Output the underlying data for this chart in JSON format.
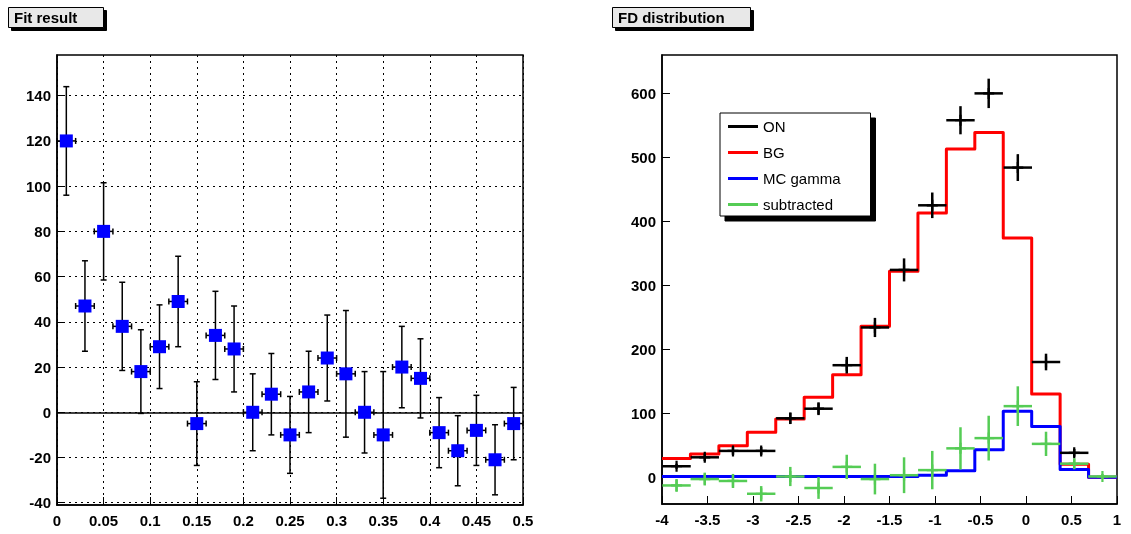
{
  "chart_data": [
    {
      "type": "scatter",
      "title": "Fit result",
      "x": [
        0.01,
        0.03,
        0.05,
        0.07,
        0.09,
        0.11,
        0.13,
        0.15,
        0.17,
        0.19,
        0.21,
        0.23,
        0.25,
        0.27,
        0.29,
        0.31,
        0.33,
        0.35,
        0.37,
        0.39,
        0.41,
        0.43,
        0.45,
        0.47,
        0.49
      ],
      "series": [
        {
          "color": "#0000ff",
          "values": [
            120,
            47,
            80,
            38,
            18,
            29,
            49,
            -5,
            34,
            28,
            0,
            8,
            -10,
            9,
            24,
            17,
            0,
            -10,
            20,
            15,
            -9,
            -17,
            -8,
            -21,
            -5
          ],
          "errors": [
            24,
            20,
            21.5,
            19.5,
            18.5,
            18.5,
            20,
            18.5,
            19.5,
            19,
            17,
            18,
            17,
            18,
            19,
            28,
            18,
            28,
            18,
            17.5,
            15.5,
            15.5,
            15.5,
            15.5,
            16
          ],
          "xerrors": [
            0.01,
            0.01,
            0.01,
            0.01,
            0.01,
            0.01,
            0.01,
            0.01,
            0.01,
            0.01,
            0.01,
            0.01,
            0.01,
            0.01,
            0.01,
            0.01,
            0.01,
            0.01,
            0.01,
            0.01,
            0.01,
            0.01,
            0.01,
            0.01,
            0.01
          ]
        }
      ],
      "xlim": [
        0,
        0.5
      ],
      "xticks": [
        0,
        0.05,
        0.1,
        0.15,
        0.2,
        0.25,
        0.3,
        0.35,
        0.4,
        0.45,
        0.5
      ],
      "ylim": [
        -41,
        158
      ],
      "yticks": [
        -40,
        -20,
        0,
        20,
        40,
        60,
        80,
        100,
        120,
        140
      ],
      "ref_lines": [
        {
          "axis": "y",
          "value": 0,
          "color": "#000000"
        }
      ],
      "grid": true,
      "marker": "square",
      "legend": false
    },
    {
      "type": "histogram",
      "title": "FD distribution",
      "series": [
        {
          "name": "ON",
          "type": "scatter",
          "color": "#000000",
          "x": [
            -3.84,
            -3.53,
            -3.22,
            -2.91,
            -2.59,
            -2.28,
            -1.97,
            -1.66,
            -1.34,
            -1.03,
            -0.72,
            -0.41,
            -0.09,
            0.22,
            0.53
          ],
          "values": [
            17,
            31,
            41,
            41,
            92,
            107,
            175,
            234,
            324,
            425,
            558,
            600,
            484,
            180,
            38
          ],
          "errors": [
            4,
            6,
            6,
            6,
            9,
            10,
            13,
            15,
            18,
            20,
            22,
            23,
            21,
            13,
            6
          ],
          "xerrors": [
            0.156,
            0.156,
            0.156,
            0.156,
            0.156,
            0.156,
            0.156,
            0.156,
            0.156,
            0.156,
            0.156,
            0.156,
            0.156,
            0.156,
            0.156
          ]
        },
        {
          "name": "BG",
          "color": "#ff0000",
          "bins": [
            -4,
            -3.6875,
            -3.375,
            -3.0625,
            -2.75,
            -2.4375,
            -2.125,
            -1.8125,
            -1.5,
            -1.1875,
            -0.875,
            -0.5625,
            -0.25,
            0.0625,
            0.375,
            0.6875,
            1
          ],
          "values": [
            29,
            36,
            49,
            70,
            91,
            125,
            160,
            236,
            322,
            413,
            513,
            539,
            374,
            130,
            20,
            0
          ]
        },
        {
          "name": "MC gamma",
          "color": "#0000ff",
          "bins": [
            -4,
            -3.6875,
            -3.375,
            -3.0625,
            -2.75,
            -2.4375,
            -2.125,
            -1.8125,
            -1.5,
            -1.1875,
            -0.875,
            -0.5625,
            -0.25,
            0.0625,
            0.375,
            0.6875,
            1
          ],
          "values": [
            1,
            1,
            1,
            1,
            1,
            1,
            1,
            1,
            1,
            3,
            10,
            43,
            103,
            79,
            12,
            0
          ]
        },
        {
          "name": "subtracted",
          "type": "scatter",
          "color": "#55cc55",
          "x": [
            -3.84,
            -3.53,
            -3.22,
            -2.91,
            -2.59,
            -2.28,
            -1.97,
            -1.66,
            -1.34,
            -1.03,
            -0.72,
            -0.41,
            -0.09,
            0.22,
            0.53,
            0.84
          ],
          "values": [
            -13,
            -3,
            -6,
            -26,
            1,
            -17,
            16,
            -3,
            3,
            11,
            45,
            61,
            111,
            52,
            21,
            1
          ],
          "errors": [
            10,
            10,
            11,
            12,
            15,
            17,
            19,
            24,
            28,
            30,
            33,
            35,
            31,
            19,
            8,
            4
          ],
          "xerrors": [
            0.156,
            0.156,
            0.156,
            0.156,
            0.156,
            0.156,
            0.156,
            0.156,
            0.156,
            0.156,
            0.156,
            0.156,
            0.156,
            0.156,
            0.156,
            0.156
          ]
        }
      ],
      "xlim": [
        -4,
        1
      ],
      "xticks": [
        -4,
        -3.5,
        -3,
        -2.5,
        -2,
        -1.5,
        -1,
        -0.5,
        0,
        0.5,
        1
      ],
      "ylim": [
        -42,
        660
      ],
      "yticks": [
        0,
        100,
        200,
        300,
        400,
        500,
        600
      ],
      "grid": false,
      "marker": "cross",
      "legend": "top left"
    }
  ]
}
